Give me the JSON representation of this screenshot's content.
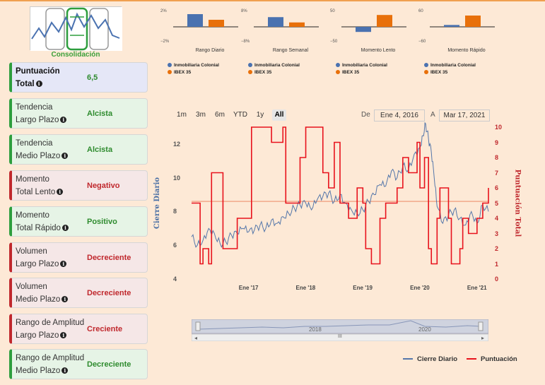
{
  "logo": {
    "label": "Consolidación"
  },
  "cards": [
    {
      "line1": "Puntuación",
      "line2": "Total",
      "value": "6,5",
      "tone": "blue"
    },
    {
      "line1": "Tendencia",
      "line2": "Largo Plazo",
      "value": "Alcista",
      "tone": "green"
    },
    {
      "line1": "Tendencia",
      "line2": "Medio Plazo",
      "value": "Alcista",
      "tone": "green"
    },
    {
      "line1": "Momento",
      "line2": "Total Lento",
      "value": "Negativo",
      "tone": "red"
    },
    {
      "line1": "Momento",
      "line2": "Total Rápido",
      "value": "Positivo",
      "tone": "green"
    },
    {
      "line1": "Volumen",
      "line2": "Largo Plazo",
      "value": "Decreciente",
      "tone": "red"
    },
    {
      "line1": "Volumen",
      "line2": "Medio Plazo",
      "value": "Decreciente",
      "tone": "red"
    },
    {
      "line1": "Rango de Amplitud",
      "line2": "Largo Plazo",
      "value": "Creciente",
      "tone": "red"
    },
    {
      "line1": "Rango de Amplitud",
      "line2": "Medio Plazo",
      "value": "Decreciente",
      "tone": "green"
    }
  ],
  "colors": {
    "company": "#4a72b0",
    "index": "#e8700a",
    "score": "#e8121c",
    "price": "#5577aa",
    "ref": "#f2a98a"
  },
  "series_names": {
    "company": "Inmobiliaria Colonial",
    "index": "IBEX 35"
  },
  "mini_charts": [
    {
      "title": "Rango Diario",
      "ytop": "2%",
      "ybot": "−2%",
      "company": 1.8,
      "index": 1.0,
      "range": [
        -2,
        2
      ]
    },
    {
      "title": "Rango Semanal",
      "ytop": "8%",
      "ybot": "−8%",
      "company": 5.5,
      "index": 2.5,
      "range": [
        -8,
        8
      ]
    },
    {
      "title": "Momento Lento",
      "ytop": "50",
      "ybot": "−50",
      "company": -18,
      "index": 42,
      "range": [
        -50,
        50
      ]
    },
    {
      "title": "Momento Rápido",
      "ytop": "60",
      "ybot": "−60",
      "company": 8,
      "index": 48,
      "range": [
        -60,
        60
      ]
    }
  ],
  "range_selector": {
    "buttons": [
      "1m",
      "3m",
      "6m",
      "YTD",
      "1y",
      "All"
    ],
    "active": "All",
    "from_label": "De",
    "to_label": "A",
    "from": "Ene 4, 2016",
    "to": "Mar 17, 2021"
  },
  "chart_data": {
    "type": "line",
    "x_ticks": [
      "Ene '17",
      "Ene '18",
      "Ene '19",
      "Ene '20",
      "Ene '21"
    ],
    "y_left": {
      "label": "Cierre Diario",
      "ticks": [
        "4",
        "6",
        "8",
        "10",
        "12"
      ],
      "range": [
        4,
        13
      ]
    },
    "y_right": {
      "label": "Puntuación Total",
      "ticks": [
        "0",
        "1",
        "2",
        "3",
        "4",
        "5",
        "6",
        "7",
        "8",
        "9",
        "10"
      ],
      "range": [
        0,
        10
      ]
    },
    "reference_price": 8.6,
    "series": [
      {
        "name": "Cierre Diario",
        "axis": "left",
        "x": [
          2016.0,
          2016.1,
          2016.2,
          2016.3,
          2016.4,
          2016.5,
          2016.6,
          2016.7,
          2016.8,
          2016.9,
          2017.0,
          2017.1,
          2017.2,
          2017.3,
          2017.4,
          2017.5,
          2017.6,
          2017.7,
          2017.8,
          2017.9,
          2018.0,
          2018.1,
          2018.2,
          2018.3,
          2018.4,
          2018.5,
          2018.6,
          2018.7,
          2018.8,
          2018.9,
          2019.0,
          2019.1,
          2019.2,
          2019.3,
          2019.4,
          2019.5,
          2019.6,
          2019.7,
          2019.8,
          2019.9,
          2020.0,
          2020.05,
          2020.1,
          2020.15,
          2020.2,
          2020.25,
          2020.3,
          2020.4,
          2020.5,
          2020.6,
          2020.7,
          2020.8,
          2020.9,
          2021.0,
          2021.1,
          2021.2
        ],
        "values": [
          6.5,
          6.0,
          6.3,
          7.0,
          6.7,
          6.1,
          6.2,
          6.6,
          6.7,
          7.0,
          6.8,
          6.9,
          7.2,
          7.0,
          7.5,
          7.3,
          7.7,
          7.9,
          8.2,
          8.4,
          8.5,
          8.1,
          8.7,
          8.9,
          9.1,
          8.6,
          9.0,
          8.5,
          8.1,
          7.9,
          8.1,
          8.6,
          9.0,
          9.6,
          9.5,
          10.4,
          10.0,
          10.7,
          10.5,
          11.4,
          11.8,
          12.5,
          13.2,
          12.3,
          11.5,
          10.0,
          8.3,
          7.3,
          7.8,
          8.1,
          7.6,
          7.2,
          8.0,
          7.3,
          8.4,
          8.0
        ]
      },
      {
        "name": "Puntuación",
        "axis": "right",
        "x": [
          2016.0,
          2016.15,
          2016.2,
          2016.3,
          2016.35,
          2016.5,
          2016.55,
          2016.8,
          2017.0,
          2017.05,
          2017.4,
          2017.6,
          2017.65,
          2017.9,
          2018.0,
          2018.3,
          2018.4,
          2018.5,
          2018.6,
          2018.75,
          2018.9,
          2019.0,
          2019.05,
          2019.15,
          2019.3,
          2019.4,
          2019.6,
          2019.7,
          2019.8,
          2019.95,
          2020.0,
          2020.08,
          2020.15,
          2020.2,
          2020.3,
          2020.35,
          2020.5,
          2020.55,
          2020.7,
          2020.75,
          2020.85,
          2020.9,
          2021.0,
          2021.1,
          2021.2
        ],
        "values": [
          5,
          1,
          2,
          1,
          7,
          7,
          2,
          4,
          4,
          10,
          9,
          10,
          5,
          8,
          10,
          7,
          6,
          9,
          5,
          4,
          6,
          5,
          2,
          1,
          4,
          5,
          6,
          8,
          7,
          9,
          6,
          8,
          2,
          1,
          4,
          6,
          4,
          1,
          2,
          4,
          3,
          3,
          4,
          5,
          6
        ]
      }
    ]
  },
  "navigator": {
    "labels": [
      "2018",
      "2020"
    ],
    "scroll_label": "III"
  },
  "legend": [
    {
      "label": "Cierre Diario",
      "key": "price"
    },
    {
      "label": "Puntuación",
      "key": "score"
    }
  ]
}
